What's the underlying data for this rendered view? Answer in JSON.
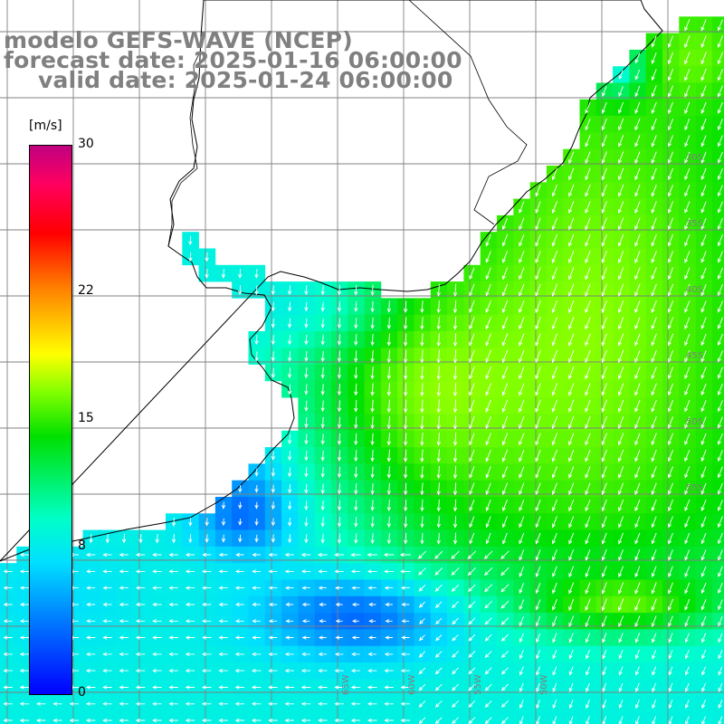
{
  "title": {
    "line1": "modelo GEFS-WAVE (NCEP)",
    "line2": "forecast date: 2025-01-16 06:00:00",
    "line3": "valid date: 2025-01-24 06:00:00"
  },
  "colorbar": {
    "unit": "[m/s]",
    "ticks": [
      {
        "label": "30",
        "value": 30
      },
      {
        "label": "22",
        "value": 22
      },
      {
        "label": "15",
        "value": 15
      },
      {
        "label": "8",
        "value": 8
      },
      {
        "label": "0",
        "value": 0
      }
    ],
    "range": [
      0,
      30
    ]
  },
  "map": {
    "lat_labels": [
      "30S",
      "35S",
      "40S",
      "45S",
      "50S",
      "55S"
    ],
    "lon_labels": [
      "65W",
      "60W",
      "55W",
      "50W"
    ],
    "colors": {
      "land": "#ffffff",
      "grid": "#808080",
      "coast": "#000000",
      "arrows": "#ffffff"
    }
  }
}
